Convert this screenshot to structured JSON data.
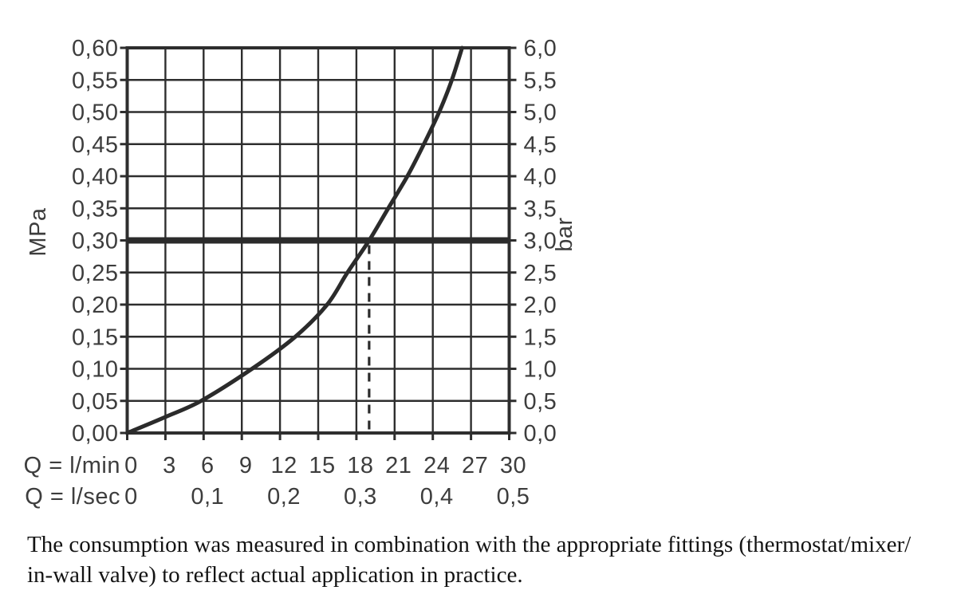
{
  "colors": {
    "background": "#ffffff",
    "line": "#2b2b2b",
    "grid": "#2e2e2e",
    "tick_text": "#3d3d3d",
    "caption_text": "#141414"
  },
  "chart_data": {
    "type": "line",
    "title": "",
    "left_axis": {
      "unit": "MPa",
      "min": 0.0,
      "max": 0.6,
      "step": 0.05,
      "ticks": [
        "0,60",
        "0,55",
        "0,50",
        "0,45",
        "0,40",
        "0,35",
        "0,30",
        "0,25",
        "0,20",
        "0,15",
        "0,10",
        "0,05",
        "0,00"
      ]
    },
    "right_axis": {
      "unit": "bar",
      "min": 0.0,
      "max": 6.0,
      "step": 0.5,
      "ticks": [
        "6,0",
        "5,5",
        "5,0",
        "4,5",
        "4,0",
        "3,5",
        "3,0",
        "2,5",
        "2,0",
        "1,5",
        "1,0",
        "0,5",
        "0,0"
      ]
    },
    "x_axis_rows": [
      {
        "label": "Q = l/min",
        "tick_labels": [
          "0",
          "3",
          "6",
          "9",
          "12",
          "15",
          "18",
          "21",
          "24",
          "27",
          "30"
        ],
        "tick_values_lmin": [
          0,
          3,
          6,
          9,
          12,
          15,
          18,
          21,
          24,
          27,
          30
        ]
      },
      {
        "label": "Q = l/sec",
        "tick_labels": [
          "0",
          "0,1",
          "0,2",
          "0,3",
          "0,4",
          "0,5"
        ],
        "tick_values_lmin": [
          0,
          6,
          12,
          18,
          24,
          30
        ]
      }
    ],
    "grid": true,
    "series": [
      {
        "name": "flow-pressure-curve",
        "x_lmin": [
          0,
          3,
          5.8,
          9.8,
          13.2,
          15.7,
          17.3,
          19.0,
          20.5,
          22.0,
          23.3,
          24.5,
          25.5,
          26.3
        ],
        "y_mpa": [
          0.0,
          0.025,
          0.05,
          0.1,
          0.15,
          0.2,
          0.25,
          0.3,
          0.35,
          0.4,
          0.45,
          0.5,
          0.55,
          0.6
        ]
      }
    ],
    "reference_lines": {
      "horizontal_thick_mpa": 0.3,
      "vertical_dashed_lmin": 19.0
    }
  },
  "caption": {
    "line1": "The consumption was measured in combination with the appropriate fittings (thermostat/mixer/",
    "line2": "in-wall valve) to reflect actual application in practice."
  }
}
